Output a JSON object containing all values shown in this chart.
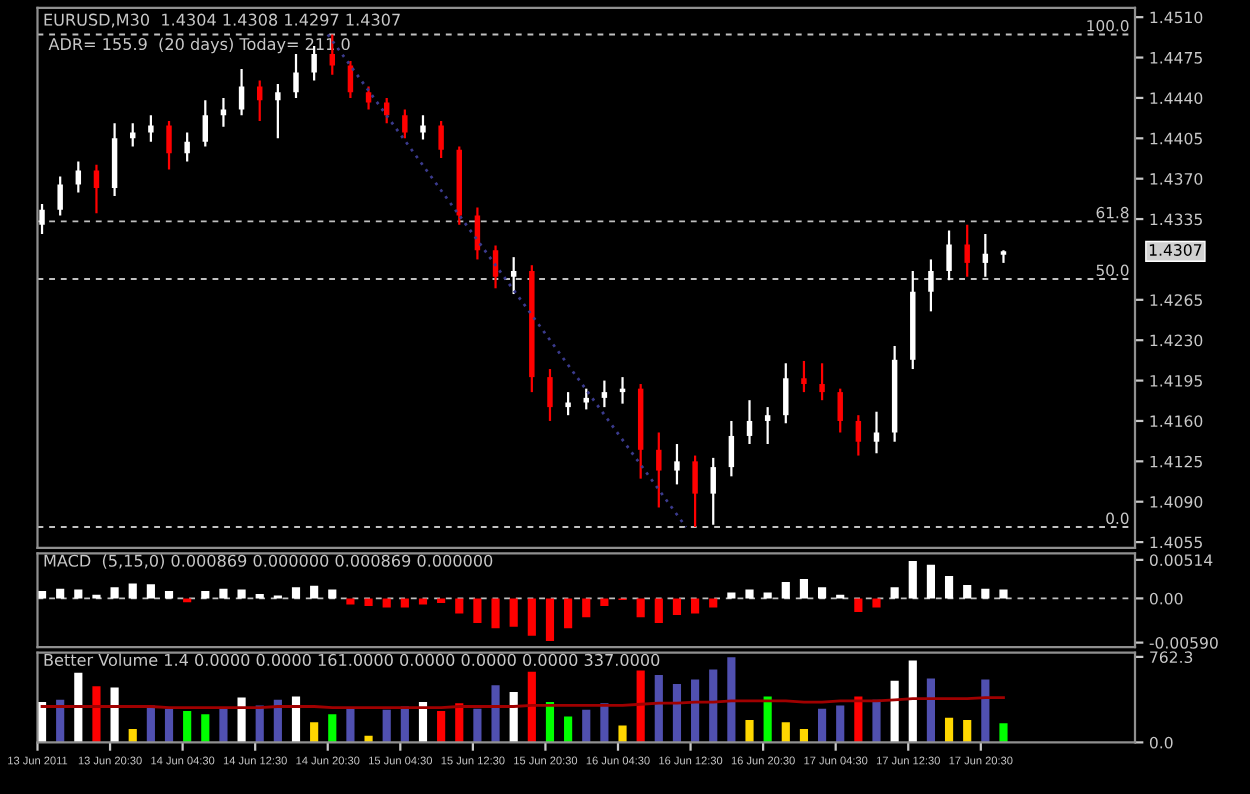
{
  "chart_data": [
    {
      "type": "candlestick",
      "title": "EURUSD,M30  1.4304 1.4308 1.4297 1.4307",
      "subtitle": "ADR= 155.9  (20 days) Today= 211.0",
      "x": [
        "2011-06-13T13:00",
        "2011-06-13T15:00",
        "2011-06-13T17:00",
        "2011-06-13T19:00",
        "2011-06-13T21:00",
        "2011-06-13T23:00",
        "2011-06-14T01:00",
        "2011-06-14T03:00",
        "2011-06-14T05:00",
        "2011-06-14T07:00",
        "2011-06-14T09:00",
        "2011-06-14T11:00",
        "2011-06-14T13:00",
        "2011-06-14T15:00",
        "2011-06-14T17:00",
        "2011-06-14T19:00",
        "2011-06-14T21:00",
        "2011-06-14T23:00",
        "2011-06-15T01:00",
        "2011-06-15T03:00",
        "2011-06-15T05:00",
        "2011-06-15T07:00",
        "2011-06-15T09:00",
        "2011-06-15T11:00",
        "2011-06-15T13:00",
        "2011-06-15T15:00",
        "2011-06-15T17:00",
        "2011-06-15T19:00",
        "2011-06-15T21:00",
        "2011-06-15T23:00",
        "2011-06-16T01:00",
        "2011-06-16T03:00",
        "2011-06-16T05:00",
        "2011-06-16T07:00",
        "2011-06-16T09:00",
        "2011-06-16T11:00",
        "2011-06-16T13:00",
        "2011-06-16T15:00",
        "2011-06-16T17:00",
        "2011-06-16T19:00",
        "2011-06-16T21:00",
        "2011-06-16T23:00",
        "2011-06-17T01:00",
        "2011-06-17T03:00",
        "2011-06-17T05:00",
        "2011-06-17T07:00",
        "2011-06-17T09:00",
        "2011-06-17T11:00",
        "2011-06-17T13:00",
        "2011-06-17T15:00",
        "2011-06-17T17:00",
        "2011-06-17T19:00",
        "2011-06-17T21:00",
        "2011-06-17T23:00"
      ],
      "ohlc": [
        [
          1.433,
          1.4348,
          1.4322,
          1.4343
        ],
        [
          1.4343,
          1.4372,
          1.4338,
          1.4365
        ],
        [
          1.4365,
          1.4385,
          1.4358,
          1.4377
        ],
        [
          1.4377,
          1.4382,
          1.434,
          1.4362
        ],
        [
          1.4362,
          1.4418,
          1.4355,
          1.4405
        ],
        [
          1.4405,
          1.4418,
          1.4398,
          1.441
        ],
        [
          1.441,
          1.4425,
          1.4402,
          1.4416
        ],
        [
          1.4416,
          1.442,
          1.4378,
          1.4392
        ],
        [
          1.4392,
          1.441,
          1.4385,
          1.4402
        ],
        [
          1.4402,
          1.4438,
          1.4398,
          1.4425
        ],
        [
          1.4425,
          1.444,
          1.4415,
          1.443
        ],
        [
          1.443,
          1.4465,
          1.4425,
          1.445
        ],
        [
          1.445,
          1.4455,
          1.442,
          1.4438
        ],
        [
          1.4438,
          1.4452,
          1.4405,
          1.4445
        ],
        [
          1.4445,
          1.4478,
          1.444,
          1.4462
        ],
        [
          1.4462,
          1.4485,
          1.4455,
          1.4478
        ],
        [
          1.4478,
          1.4495,
          1.446,
          1.4468
        ],
        [
          1.4468,
          1.4472,
          1.444,
          1.4445
        ],
        [
          1.4445,
          1.445,
          1.443,
          1.4436
        ],
        [
          1.4436,
          1.444,
          1.4418,
          1.4425
        ],
        [
          1.4425,
          1.443,
          1.4405,
          1.441
        ],
        [
          1.441,
          1.4425,
          1.4404,
          1.4416
        ],
        [
          1.4416,
          1.442,
          1.4388,
          1.4395
        ],
        [
          1.4395,
          1.4398,
          1.433,
          1.4338
        ],
        [
          1.4338,
          1.4345,
          1.43,
          1.4308
        ],
        [
          1.4308,
          1.4312,
          1.4275,
          1.4285
        ],
        [
          1.4285,
          1.4302,
          1.427,
          1.429
        ],
        [
          1.429,
          1.4295,
          1.4185,
          1.4198
        ],
        [
          1.4198,
          1.4205,
          1.416,
          1.4172
        ],
        [
          1.4172,
          1.4185,
          1.4165,
          1.4176
        ],
        [
          1.4176,
          1.4188,
          1.417,
          1.418
        ],
        [
          1.418,
          1.4195,
          1.4172,
          1.4185
        ],
        [
          1.4185,
          1.4198,
          1.4175,
          1.4188
        ],
        [
          1.4188,
          1.4192,
          1.411,
          1.4135
        ],
        [
          1.4135,
          1.415,
          1.4085,
          1.4117
        ],
        [
          1.4117,
          1.414,
          1.4105,
          1.4125
        ],
        [
          1.4125,
          1.413,
          1.4068,
          1.4097
        ],
        [
          1.4097,
          1.4128,
          1.407,
          1.412
        ],
        [
          1.412,
          1.416,
          1.4112,
          1.4147
        ],
        [
          1.4147,
          1.4178,
          1.414,
          1.416
        ],
        [
          1.416,
          1.4172,
          1.414,
          1.4165
        ],
        [
          1.4165,
          1.421,
          1.4158,
          1.4197
        ],
        [
          1.4197,
          1.4212,
          1.4185,
          1.4192
        ],
        [
          1.4192,
          1.421,
          1.4178,
          1.4185
        ],
        [
          1.4185,
          1.4188,
          1.415,
          1.416
        ],
        [
          1.416,
          1.4165,
          1.413,
          1.4142
        ],
        [
          1.4142,
          1.4168,
          1.4132,
          1.415
        ],
        [
          1.415,
          1.4225,
          1.4142,
          1.4213
        ],
        [
          1.4213,
          1.429,
          1.4205,
          1.4272
        ],
        [
          1.4272,
          1.43,
          1.4255,
          1.429
        ],
        [
          1.429,
          1.4325,
          1.4282,
          1.4313
        ],
        [
          1.4313,
          1.433,
          1.4285,
          1.4297
        ],
        [
          1.4297,
          1.4322,
          1.4285,
          1.4305
        ],
        [
          1.4304,
          1.4308,
          1.4297,
          1.4307
        ]
      ],
      "colors": [
        "#ffffff",
        "#ffffff",
        "#ffffff",
        "#ff0000",
        "#ffffff",
        "#ffffff",
        "#ffffff",
        "#ff0000",
        "#ffffff",
        "#ffffff",
        "#ffffff",
        "#ffffff",
        "#ff0000",
        "#ffffff",
        "#ffffff",
        "#ffffff",
        "#ff0000",
        "#ff0000",
        "#ff0000",
        "#ff0000",
        "#ff0000",
        "#ffffff",
        "#ff0000",
        "#ff0000",
        "#ff0000",
        "#ff0000",
        "#ffffff",
        "#ff0000",
        "#ff0000",
        "#ffffff",
        "#ffffff",
        "#ffffff",
        "#ffffff",
        "#ff0000",
        "#ff0000",
        "#ffffff",
        "#ff0000",
        "#ffffff",
        "#ffffff",
        "#ffffff",
        "#ffffff",
        "#ffffff",
        "#ff0000",
        "#ff0000",
        "#ff0000",
        "#ff0000",
        "#ffffff",
        "#ffffff",
        "#ffffff",
        "#ffffff",
        "#ffffff",
        "#ff0000",
        "#ffffff",
        "#ffffff"
      ],
      "series": [
        {
          "type": "line",
          "x": [
            "2011-06-14T20:30",
            "2011-06-16T12:00"
          ],
          "values": [
            1.4495,
            1.4068
          ],
          "color": "#3a3a8c",
          "line_style": "dotted"
        }
      ],
      "xlim": [
        "2011-06-13T12:30",
        "2011-06-18T13:30"
      ],
      "ylim": [
        1.405,
        1.4518
      ],
      "yticks": [
        {
          "value": 1.451,
          "label": "1.4510"
        },
        {
          "value": 1.4475,
          "label": "1.4475"
        },
        {
          "value": 1.444,
          "label": "1.4440"
        },
        {
          "value": 1.4405,
          "label": "1.4405"
        },
        {
          "value": 1.437,
          "label": "1.4370"
        },
        {
          "value": 1.4335,
          "label": "1.4335"
        },
        {
          "value": 1.4265,
          "label": "1.4265"
        },
        {
          "value": 1.423,
          "label": "1.4230"
        },
        {
          "value": 1.4195,
          "label": "1.4195"
        },
        {
          "value": 1.416,
          "label": "1.4160"
        },
        {
          "value": 1.4125,
          "label": "1.4125"
        },
        {
          "value": 1.409,
          "label": "1.4090"
        },
        {
          "value": 1.4055,
          "label": "1.4055"
        }
      ],
      "tick_labels": "y",
      "ref_lines": [
        {
          "axis": "y",
          "value": 1.4495,
          "color": "#c0c0c0",
          "line_style": "dashed"
        },
        {
          "axis": "y",
          "value": 1.4333,
          "color": "#c0c0c0",
          "line_style": "dashed"
        },
        {
          "axis": "y",
          "value": 1.4283,
          "color": "#c0c0c0",
          "line_style": "dashed"
        },
        {
          "axis": "y",
          "value": 1.4068,
          "color": "#c0c0c0",
          "line_style": "dashed"
        }
      ],
      "annotations": [
        {
          "text": "100.0",
          "y": 1.4495
        },
        {
          "text": "61.8",
          "y": 1.4333
        },
        {
          "text": "50.0",
          "y": 1.4283
        },
        {
          "text": "0.0",
          "y": 1.4068
        },
        "1.4307"
      ]
    },
    {
      "type": "bar",
      "title": "MACD  (5,15,0) 0.000869 0.000000 0.000869 0.000000",
      "x": [
        "2011-06-13T13:00",
        "2011-06-13T15:00",
        "2011-06-13T17:00",
        "2011-06-13T19:00",
        "2011-06-13T21:00",
        "2011-06-13T23:00",
        "2011-06-14T01:00",
        "2011-06-14T03:00",
        "2011-06-14T05:00",
        "2011-06-14T07:00",
        "2011-06-14T09:00",
        "2011-06-14T11:00",
        "2011-06-14T13:00",
        "2011-06-14T15:00",
        "2011-06-14T17:00",
        "2011-06-14T19:00",
        "2011-06-14T21:00",
        "2011-06-14T23:00",
        "2011-06-15T01:00",
        "2011-06-15T03:00",
        "2011-06-15T05:00",
        "2011-06-15T07:00",
        "2011-06-15T09:00",
        "2011-06-15T11:00",
        "2011-06-15T13:00",
        "2011-06-15T15:00",
        "2011-06-15T17:00",
        "2011-06-15T19:00",
        "2011-06-15T21:00",
        "2011-06-15T23:00",
        "2011-06-16T01:00",
        "2011-06-16T03:00",
        "2011-06-16T05:00",
        "2011-06-16T07:00",
        "2011-06-16T09:00",
        "2011-06-16T11:00",
        "2011-06-16T13:00",
        "2011-06-16T15:00",
        "2011-06-16T17:00",
        "2011-06-16T19:00",
        "2011-06-16T21:00",
        "2011-06-16T23:00",
        "2011-06-17T01:00",
        "2011-06-17T03:00",
        "2011-06-17T05:00",
        "2011-06-17T07:00",
        "2011-06-17T09:00",
        "2011-06-17T11:00",
        "2011-06-17T13:00",
        "2011-06-17T15:00",
        "2011-06-17T17:00",
        "2011-06-17T19:00",
        "2011-06-17T21:00",
        "2011-06-17T23:00"
      ],
      "values": [
        0.001,
        0.0013,
        0.0012,
        0.0005,
        0.0015,
        0.002,
        0.0019,
        0.001,
        -0.0005,
        0.001,
        0.0013,
        0.0012,
        0.0006,
        0.0004,
        0.0015,
        0.0017,
        0.0012,
        -0.0008,
        -0.001,
        -0.0012,
        -0.0012,
        -0.0008,
        -0.0006,
        -0.002,
        -0.0033,
        -0.004,
        -0.0038,
        -0.005,
        -0.0057,
        -0.004,
        -0.0025,
        -0.001,
        -0.0002,
        -0.0025,
        -0.0033,
        -0.0022,
        -0.002,
        -0.0012,
        0.0008,
        0.0012,
        0.0008,
        0.0022,
        0.0026,
        0.0015,
        0.0005,
        -0.0018,
        -0.0012,
        0.0015,
        0.005,
        0.0045,
        0.003,
        0.0018,
        0.0013,
        0.0012
      ],
      "colors": [
        "#ffffff",
        "#ffffff",
        "#ffffff",
        "#ffffff",
        "#ffffff",
        "#ffffff",
        "#ffffff",
        "#ffffff",
        "#ff0000",
        "#ffffff",
        "#ffffff",
        "#ffffff",
        "#ffffff",
        "#ffffff",
        "#ffffff",
        "#ffffff",
        "#ffffff",
        "#ff0000",
        "#ff0000",
        "#ff0000",
        "#ff0000",
        "#ff0000",
        "#ff0000",
        "#ff0000",
        "#ff0000",
        "#ff0000",
        "#ff0000",
        "#ff0000",
        "#ff0000",
        "#ff0000",
        "#ff0000",
        "#ff0000",
        "#ff0000",
        "#ff0000",
        "#ff0000",
        "#ff0000",
        "#ff0000",
        "#ff0000",
        "#ffffff",
        "#ffffff",
        "#ffffff",
        "#ffffff",
        "#ffffff",
        "#ffffff",
        "#ffffff",
        "#ff0000",
        "#ff0000",
        "#ffffff",
        "#ffffff",
        "#ffffff",
        "#ffffff",
        "#ffffff",
        "#ffffff",
        "#ffffff"
      ],
      "xlim": [
        "2011-06-13T12:30",
        "2011-06-18T13:30"
      ],
      "ylim": [
        -0.0065,
        0.006
      ],
      "yticks": [
        {
          "value": 0.00514,
          "label": "0.00514"
        },
        {
          "value": 0,
          "label": "0.00"
        },
        {
          "value": -0.0059,
          "label": "-0.00590"
        }
      ],
      "tick_labels": "y",
      "ref_lines": [
        {
          "axis": "y",
          "value": 0,
          "color": "#c0c0c0",
          "line_style": "dashed"
        }
      ]
    },
    {
      "type": "bar",
      "title": "Better Volume 1.4 0.0000 0.0000 161.0000 0.0000 0.0000 0.0000 337.0000",
      "x": [
        "2011-06-13T13:00",
        "2011-06-13T15:00",
        "2011-06-13T17:00",
        "2011-06-13T19:00",
        "2011-06-13T21:00",
        "2011-06-13T23:00",
        "2011-06-14T01:00",
        "2011-06-14T03:00",
        "2011-06-14T05:00",
        "2011-06-14T07:00",
        "2011-06-14T09:00",
        "2011-06-14T11:00",
        "2011-06-14T13:00",
        "2011-06-14T15:00",
        "2011-06-14T17:00",
        "2011-06-14T19:00",
        "2011-06-14T21:00",
        "2011-06-14T23:00",
        "2011-06-15T01:00",
        "2011-06-15T03:00",
        "2011-06-15T05:00",
        "2011-06-15T07:00",
        "2011-06-15T09:00",
        "2011-06-15T11:00",
        "2011-06-15T13:00",
        "2011-06-15T15:00",
        "2011-06-15T17:00",
        "2011-06-15T19:00",
        "2011-06-15T21:00",
        "2011-06-15T23:00",
        "2011-06-16T01:00",
        "2011-06-16T03:00",
        "2011-06-16T05:00",
        "2011-06-16T07:00",
        "2011-06-16T09:00",
        "2011-06-16T11:00",
        "2011-06-16T13:00",
        "2011-06-16T15:00",
        "2011-06-16T17:00",
        "2011-06-16T19:00",
        "2011-06-16T21:00",
        "2011-06-16T23:00",
        "2011-06-17T01:00",
        "2011-06-17T03:00",
        "2011-06-17T05:00",
        "2011-06-17T07:00",
        "2011-06-17T09:00",
        "2011-06-17T11:00",
        "2011-06-17T13:00",
        "2011-06-17T15:00",
        "2011-06-17T17:00",
        "2011-06-17T19:00",
        "2011-06-17T21:00",
        "2011-06-17T23:00"
      ],
      "series": [
        {
          "type": "bar",
          "values": [
            360,
            380,
            620,
            500,
            490,
            120,
            330,
            300,
            280,
            250,
            310,
            400,
            330,
            380,
            410,
            180,
            250,
            300,
            60,
            290,
            320,
            360,
            280,
            350,
            300,
            510,
            450,
            630,
            360,
            230,
            290,
            350,
            150,
            640,
            600,
            520,
            560,
            650,
            760,
            200,
            410,
            180,
            120,
            300,
            330,
            410,
            380,
            550,
            730,
            570,
            220,
            200,
            560,
            170
          ],
          "colors": [
            "#ffffff",
            "#5050b0",
            "#ffffff",
            "#ff0000",
            "#ffffff",
            "#ffd700",
            "#5050b0",
            "#5050b0",
            "#00ff00",
            "#00ff00",
            "#5050b0",
            "#ffffff",
            "#5050b0",
            "#5050b0",
            "#ffffff",
            "#ffd700",
            "#00ff00",
            "#5050b0",
            "#ffd700",
            "#5050b0",
            "#5050b0",
            "#ffffff",
            "#ff0000",
            "#ff0000",
            "#5050b0",
            "#5050b0",
            "#ffffff",
            "#ff0000",
            "#00ff00",
            "#00ff00",
            "#5050b0",
            "#5050b0",
            "#ffd700",
            "#ff0000",
            "#5050b0",
            "#5050b0",
            "#5050b0",
            "#5050b0",
            "#5050b0",
            "#ffd700",
            "#00ff00",
            "#ffd700",
            "#ffd700",
            "#5050b0",
            "#5050b0",
            "#ff0000",
            "#5050b0",
            "#ffffff",
            "#ffffff",
            "#5050b0",
            "#ffd700",
            "#ffd700",
            "#5050b0",
            "#00ff00"
          ]
        },
        {
          "type": "line",
          "color": "#a00000",
          "values": [
            320,
            320,
            320,
            320,
            320,
            320,
            320,
            310,
            310,
            310,
            310,
            310,
            310,
            320,
            320,
            320,
            310,
            310,
            310,
            310,
            310,
            310,
            310,
            320,
            320,
            320,
            320,
            330,
            330,
            330,
            330,
            330,
            330,
            340,
            350,
            350,
            360,
            360,
            370,
            370,
            370,
            370,
            360,
            360,
            370,
            370,
            370,
            380,
            390,
            390,
            390,
            390,
            400,
            400
          ]
        }
      ],
      "xlim": [
        "2011-06-13T12:30",
        "2011-06-18T13:30"
      ],
      "xticks": [
        {
          "value": "2011-06-13T12:30",
          "label": "13 Jun 2011"
        },
        {
          "value": "2011-06-13T20:30",
          "label": "13 Jun 20:30"
        },
        {
          "value": "2011-06-14T04:30",
          "label": "14 Jun 04:30"
        },
        {
          "value": "2011-06-14T12:30",
          "label": "14 Jun 12:30"
        },
        {
          "value": "2011-06-14T20:30",
          "label": "14 Jun 20:30"
        },
        {
          "value": "2011-06-15T04:30",
          "label": "15 Jun 04:30"
        },
        {
          "value": "2011-06-15T12:30",
          "label": "15 Jun 12:30"
        },
        {
          "value": "2011-06-15T20:30",
          "label": "15 Jun 20:30"
        },
        {
          "value": "2011-06-16T04:30",
          "label": "16 Jun 04:30"
        },
        {
          "value": "2011-06-16T12:30",
          "label": "16 Jun 12:30"
        },
        {
          "value": "2011-06-16T20:30",
          "label": "16 Jun 20:30"
        },
        {
          "value": "2011-06-17T04:30",
          "label": "17 Jun 04:30"
        },
        {
          "value": "2011-06-17T12:30",
          "label": "17 Jun 12:30"
        },
        {
          "value": "2011-06-17T20:30",
          "label": "17 Jun 20:30"
        }
      ],
      "ylim": [
        0,
        800
      ],
      "yticks": [
        {
          "value": 762.3,
          "label": "762.3"
        },
        {
          "value": 0,
          "label": "0.0"
        }
      ]
    }
  ]
}
